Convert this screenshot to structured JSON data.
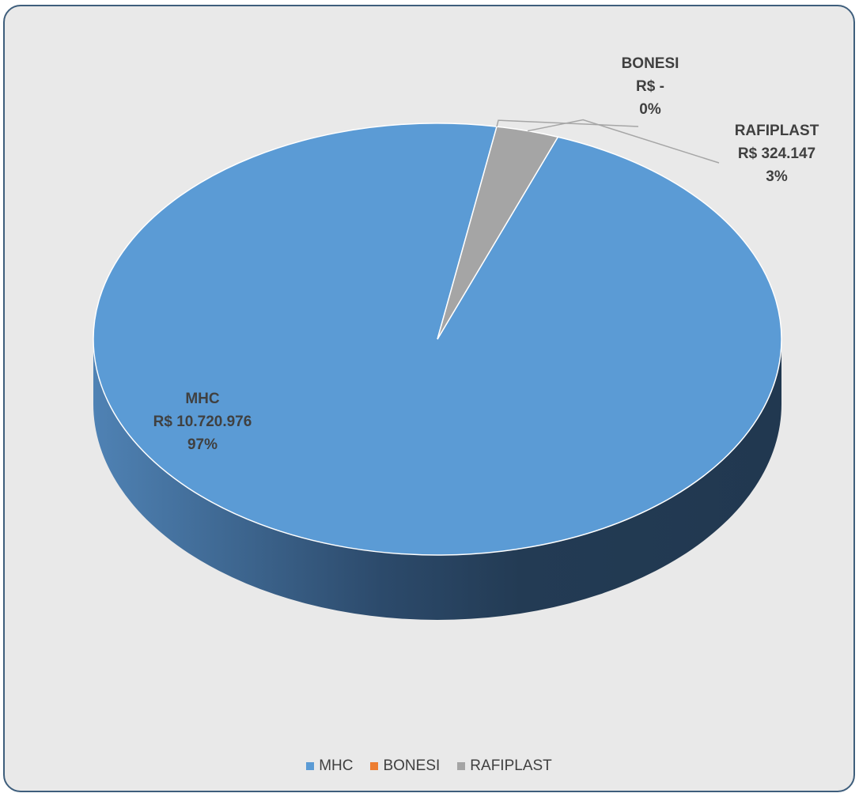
{
  "chart_data": {
    "type": "pie",
    "style": "3d",
    "title": "",
    "legend_position": "bottom",
    "series": [
      {
        "name": "MHC",
        "value": 10720976,
        "value_label": "R$ 10.720.976",
        "percent_label": "97%",
        "color": "#5b9bd5"
      },
      {
        "name": "BONESI",
        "value": 0,
        "value_label": "R$ -",
        "percent_label": "0%",
        "color": "#ed7d31"
      },
      {
        "name": "RAFIPLAST",
        "value": 324147,
        "value_label": "R$ 324.147",
        "percent_label": "3%",
        "color": "#a5a5a5"
      }
    ]
  },
  "frame": {
    "background": "#e9e9e9",
    "border_color": "#3e5e7c"
  }
}
